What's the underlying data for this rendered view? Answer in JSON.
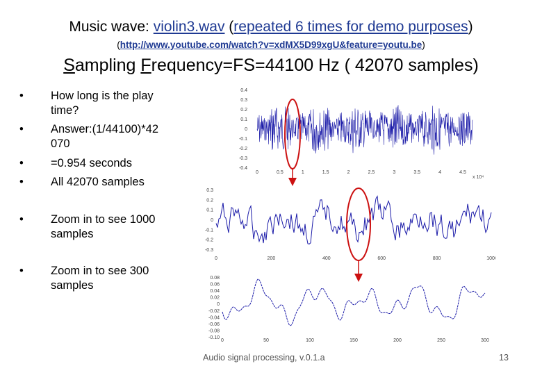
{
  "title": {
    "line1_prefix": "Music wave: ",
    "file_link": "violin3.wav",
    "line1_middle": " (",
    "repeat_note": "repeated 6 times for demo purposes",
    "line1_suffix": ")",
    "url_open": "(",
    "url": "http://www.youtube.com/watch?v=xdMX5D99xgU&feature=youtu.be",
    "url_close": ")",
    "sampling_s": "S",
    "sampling_rest": "ampling ",
    "frequency_f": "F",
    "frequency_rest": "requency=FS=44100 Hz ( 42070 samples)"
  },
  "bullets": [
    {
      "dot": "•",
      "text": "How long is the play time?"
    },
    {
      "dot": "•",
      "text": "Answer:(1/44100)*42 070"
    },
    {
      "dot": "•",
      "text": "=0.954 seconds"
    },
    {
      "dot": "•",
      "text": "All 42070 samples"
    },
    {
      "dot": "•",
      "text": "Zoom in to see 1000 samples"
    },
    {
      "dot": "•",
      "text": "Zoom in to see 300 samples"
    }
  ],
  "plots": {
    "full": {
      "yticks": [
        "0.4",
        "0.3",
        "0.2",
        "0.1",
        "0",
        "-0.1",
        "-0.2",
        "-0.3",
        "-0.4"
      ],
      "xticks": [
        "0",
        "0.5",
        "1",
        "1.5",
        "2",
        "2.5",
        "3",
        "3.5",
        "4",
        "4.5"
      ],
      "xscale": "x 10⁴"
    },
    "zoom1000": {
      "yticks": [
        "0.3",
        "0.2",
        "0.1",
        "0",
        "-0.1",
        "-0.2",
        "-0.3"
      ],
      "xticks": [
        "0",
        "200",
        "400",
        "600",
        "800",
        "1000"
      ]
    },
    "zoom300": {
      "yticks": [
        "0.08",
        "0.06",
        "0.04",
        "0.02",
        "0",
        "-0.02",
        "-0.04",
        "-0.06",
        "-0.08",
        "-0.10"
      ],
      "xticks": [
        "0",
        "50",
        "100",
        "150",
        "200",
        "250",
        "300"
      ]
    }
  },
  "colors": {
    "wave": "#1a1aa8",
    "highlight": "#cc1111",
    "link": "#1f3a93"
  },
  "footer": "Audio signal processing, v.0.1.a",
  "page_number": "13"
}
